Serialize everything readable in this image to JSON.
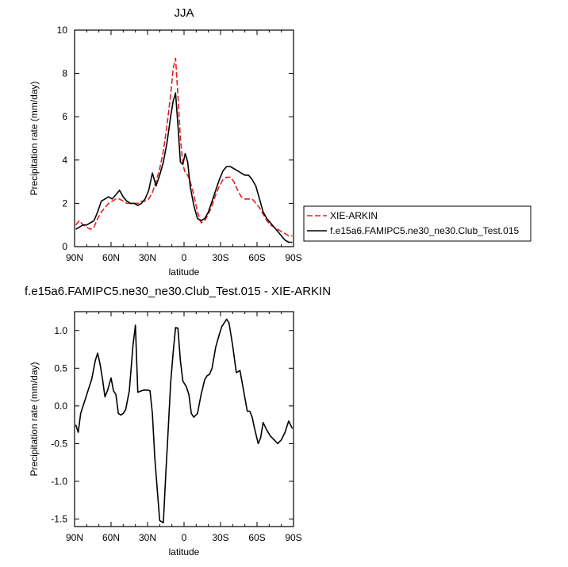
{
  "chart_data": [
    {
      "type": "line",
      "title": "JJA",
      "xlabel": "latitude",
      "ylabel": "Precipitation rate (mm/day)",
      "xlim": [
        -90,
        90
      ],
      "ylim": [
        0,
        10
      ],
      "x_ticks": [
        -90,
        -60,
        -30,
        0,
        30,
        60,
        90
      ],
      "x_tick_labels": [
        "90N",
        "60N",
        "30N",
        "0",
        "30S",
        "60S",
        "90S"
      ],
      "y_ticks": [
        0,
        2,
        4,
        6,
        8,
        10
      ],
      "y_tick_labels": [
        "0",
        "2",
        "4",
        "6",
        "8",
        "10"
      ],
      "legend_position": "right",
      "series": [
        {
          "name": "XIE-ARKIN",
          "color": "#e02020",
          "dash": "dashed",
          "x": [
            -89,
            -86,
            -83,
            -80,
            -77,
            -74,
            -71,
            -68,
            -65,
            -62,
            -59,
            -56,
            -53,
            -50,
            -47,
            -44,
            -41,
            -38,
            -35,
            -32,
            -29,
            -26,
            -23,
            -20,
            -17,
            -14,
            -11,
            -9,
            -7,
            -5,
            -3,
            -1,
            1,
            3,
            5,
            8,
            11,
            14,
            17,
            20,
            23,
            26,
            29,
            32,
            35,
            38,
            41,
            44,
            47,
            50,
            53,
            56,
            59,
            62,
            65,
            68,
            71,
            74,
            77,
            80,
            83,
            86,
            89
          ],
          "y": [
            1.0,
            1.2,
            1.0,
            0.9,
            0.8,
            0.9,
            1.3,
            1.6,
            1.8,
            2.0,
            2.1,
            2.2,
            2.2,
            2.1,
            2.0,
            2.0,
            2.0,
            2.0,
            2.1,
            2.1,
            2.2,
            2.5,
            3.0,
            3.6,
            4.4,
            5.6,
            7.0,
            8.2,
            8.7,
            7.0,
            5.0,
            3.8,
            3.4,
            3.3,
            3.0,
            2.4,
            1.6,
            1.1,
            1.2,
            1.5,
            1.9,
            2.4,
            2.8,
            3.1,
            3.2,
            3.2,
            3.0,
            2.6,
            2.3,
            2.2,
            2.2,
            2.2,
            2.0,
            1.8,
            1.5,
            1.2,
            1.0,
            0.9,
            0.8,
            0.7,
            0.6,
            0.5,
            0.5
          ]
        },
        {
          "name": "f.e15a6.FAMIPC5.ne30_ne30.Club_Test.015",
          "color": "#000000",
          "dash": "solid",
          "x": [
            -89,
            -86,
            -83,
            -80,
            -77,
            -74,
            -71,
            -68,
            -65,
            -62,
            -59,
            -56,
            -53,
            -50,
            -47,
            -44,
            -41,
            -38,
            -35,
            -32,
            -29,
            -26,
            -23,
            -20,
            -17,
            -14,
            -11,
            -9,
            -7,
            -5,
            -3,
            -1,
            1,
            3,
            5,
            8,
            11,
            14,
            17,
            20,
            23,
            26,
            29,
            32,
            35,
            38,
            41,
            44,
            47,
            50,
            53,
            56,
            59,
            62,
            65,
            68,
            71,
            74,
            77,
            80,
            83,
            86,
            89
          ],
          "y": [
            0.8,
            0.9,
            1.0,
            1.0,
            1.1,
            1.2,
            1.6,
            2.1,
            2.2,
            2.3,
            2.2,
            2.4,
            2.6,
            2.3,
            2.1,
            2.0,
            2.0,
            1.9,
            2.0,
            2.2,
            2.6,
            3.4,
            2.8,
            3.3,
            3.9,
            4.8,
            6.0,
            6.7,
            7.1,
            5.6,
            3.9,
            3.8,
            4.3,
            3.9,
            2.8,
            1.9,
            1.3,
            1.2,
            1.3,
            1.6,
            2.1,
            2.6,
            3.1,
            3.5,
            3.7,
            3.7,
            3.6,
            3.5,
            3.4,
            3.3,
            3.3,
            3.1,
            2.8,
            2.2,
            1.6,
            1.3,
            1.1,
            0.9,
            0.7,
            0.5,
            0.3,
            0.2,
            0.2
          ]
        }
      ]
    },
    {
      "type": "line",
      "title": "f.e15a6.FAMIPC5.ne30_ne30.Club_Test.015 - XIE-ARKIN",
      "xlabel": "latitude",
      "ylabel": "Precipitation rate (mm/day)",
      "xlim": [
        -90,
        90
      ],
      "ylim": [
        -1.6,
        1.25
      ],
      "x_ticks": [
        -90,
        -60,
        -30,
        0,
        30,
        60,
        90
      ],
      "x_tick_labels": [
        "90N",
        "60N",
        "30N",
        "0",
        "30S",
        "60S",
        "90S"
      ],
      "y_ticks": [
        1.0,
        0.5,
        0.0,
        -0.5,
        -1.0,
        -1.5
      ],
      "y_tick_labels": [
        "1.0",
        "0.5",
        "0.0",
        "-0.5",
        "-1.0",
        "-1.5"
      ],
      "series": [
        {
          "color": "#000000",
          "dash": "solid",
          "x": [
            -89,
            -87,
            -85,
            -82,
            -79,
            -76,
            -73,
            -71,
            -69,
            -67,
            -65,
            -63,
            -60,
            -58,
            -56,
            -54,
            -52,
            -50,
            -48,
            -45,
            -42,
            -40,
            -38,
            -35,
            -33,
            -30,
            -28,
            -26,
            -24,
            -20,
            -17,
            -15,
            -13,
            -11,
            -9,
            -7,
            -5,
            -3,
            -1,
            2,
            4,
            6,
            8,
            11,
            14,
            17,
            19,
            21,
            23,
            26,
            29,
            31,
            33,
            35,
            37,
            40,
            43,
            46,
            49,
            52,
            54,
            56,
            58,
            61,
            63,
            65,
            68,
            71,
            74,
            77,
            80,
            83,
            86,
            89
          ],
          "y": [
            -0.25,
            -0.35,
            -0.1,
            0.05,
            0.2,
            0.35,
            0.6,
            0.7,
            0.55,
            0.35,
            0.12,
            0.2,
            0.37,
            0.2,
            0.15,
            -0.1,
            -0.12,
            -0.1,
            -0.05,
            0.2,
            0.8,
            1.07,
            0.18,
            0.2,
            0.21,
            0.21,
            0.2,
            -0.1,
            -0.7,
            -1.52,
            -1.55,
            -0.9,
            -0.3,
            0.3,
            0.7,
            1.04,
            1.03,
            0.6,
            0.33,
            0.25,
            0.15,
            -0.1,
            -0.15,
            -0.1,
            0.15,
            0.35,
            0.4,
            0.42,
            0.5,
            0.78,
            0.95,
            1.05,
            1.1,
            1.15,
            1.1,
            0.8,
            0.44,
            0.47,
            0.2,
            -0.07,
            -0.07,
            -0.15,
            -0.3,
            -0.5,
            -0.42,
            -0.22,
            -0.32,
            -0.4,
            -0.45,
            -0.5,
            -0.45,
            -0.35,
            -0.2,
            -0.3
          ]
        }
      ]
    }
  ]
}
